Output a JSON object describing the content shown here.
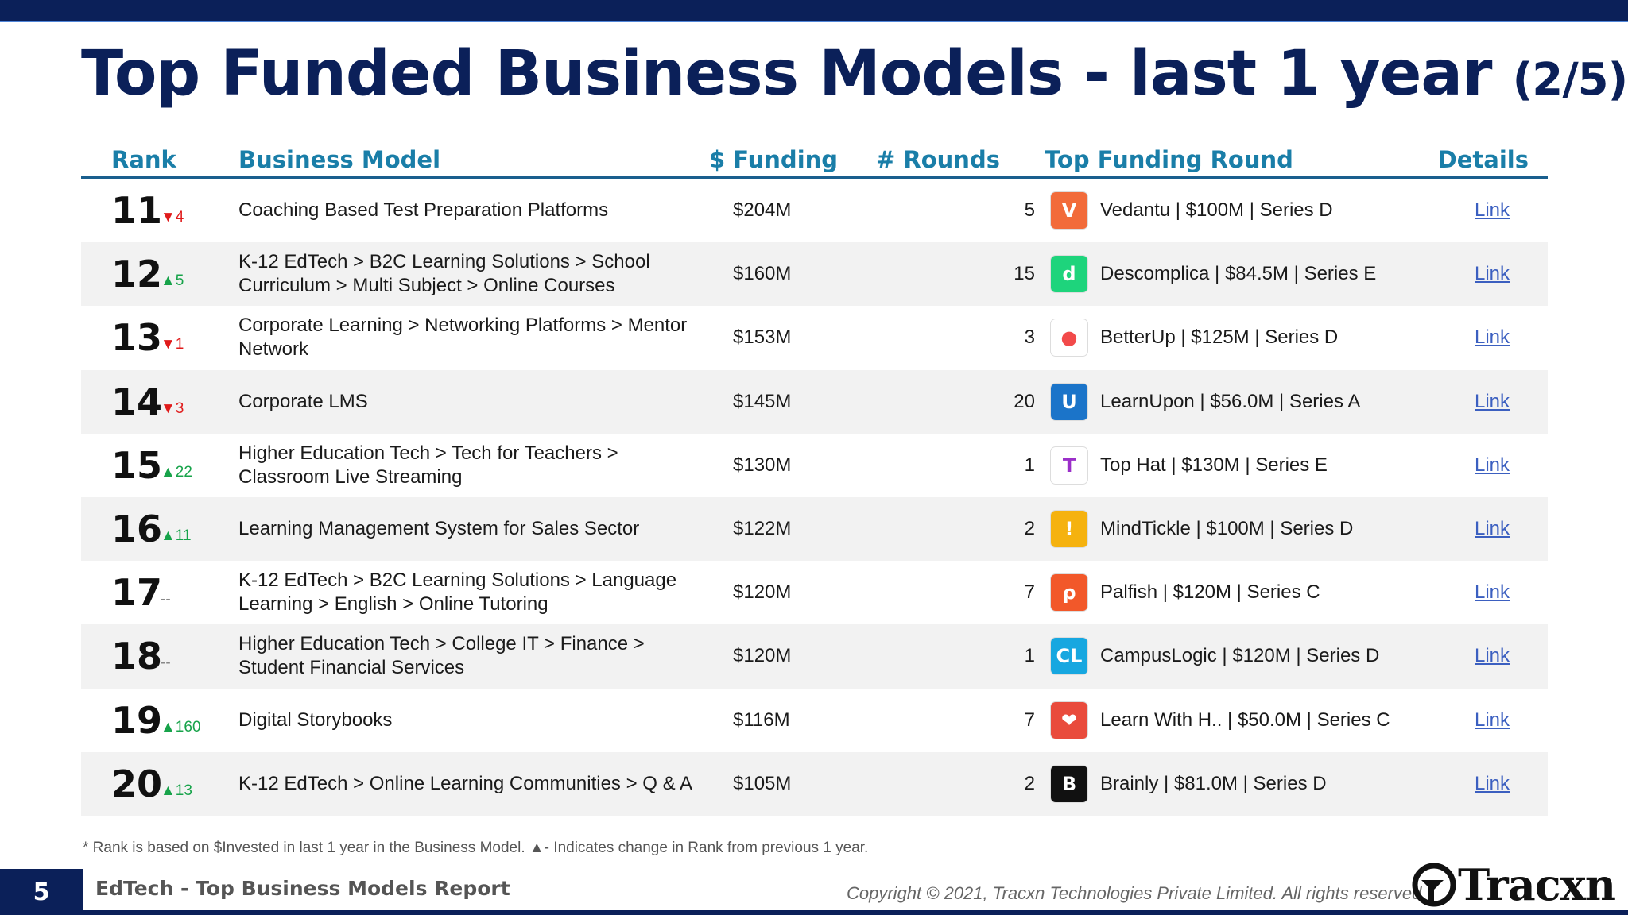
{
  "title": {
    "main": "Top Funded Business Models - last 1 year",
    "sub": "(2/5)"
  },
  "columns": {
    "rank": "Rank",
    "model": "Business Model",
    "funding": "$ Funding",
    "rounds": "# Rounds",
    "top_round": "Top Funding Round",
    "details": "Details"
  },
  "rows": [
    {
      "rank": "11",
      "change": "▼4",
      "dir": "down",
      "model": "Coaching Based Test Preparation Platforms",
      "funding": "$204M",
      "rounds": "5",
      "top_round": "Vedantu | $100M | Series D",
      "logo_text": "V",
      "logo_color": "#f26b3a",
      "logo_icon": "vedantu-logo-icon",
      "details": "Link"
    },
    {
      "rank": "12",
      "change": "▲5",
      "dir": "up",
      "model": "K-12 EdTech > B2C Learning Solutions > School Curriculum > Multi Subject > Online Courses",
      "funding": "$160M",
      "rounds": "15",
      "top_round": "Descomplica | $84.5M | Series E",
      "logo_text": "d",
      "logo_color": "#1ed47c",
      "logo_icon": "descomplica-logo-icon",
      "details": "Link"
    },
    {
      "rank": "13",
      "change": "▼1",
      "dir": "down",
      "model": "Corporate Learning > Networking Platforms > Mentor Network",
      "funding": "$153M",
      "rounds": "3",
      "top_round": "BetterUp | $125M | Series D",
      "logo_text": "●",
      "logo_color": "#ffffff",
      "logo_icon": "betterup-logo-icon",
      "details": "Link"
    },
    {
      "rank": "14",
      "change": "▼3",
      "dir": "down",
      "model": "Corporate LMS",
      "funding": "$145M",
      "rounds": "20",
      "top_round": "LearnUpon | $56.0M | Series A",
      "logo_text": "U",
      "logo_color": "#1b74c9",
      "logo_icon": "learnupon-logo-icon",
      "details": "Link"
    },
    {
      "rank": "15",
      "change": "▲22",
      "dir": "up",
      "model": "Higher Education Tech > Tech for Teachers > Classroom Live Streaming",
      "funding": "$130M",
      "rounds": "1",
      "top_round": "Top Hat | $130M | Series E",
      "logo_text": "T",
      "logo_color": "#ffffff",
      "logo_icon": "tophat-logo-icon",
      "details": "Link"
    },
    {
      "rank": "16",
      "change": "▲11",
      "dir": "up",
      "model": "Learning Management System for Sales Sector",
      "funding": "$122M",
      "rounds": "2",
      "top_round": "MindTickle | $100M | Series D",
      "logo_text": "!",
      "logo_color": "#f5b20f",
      "logo_icon": "mindtickle-logo-icon",
      "details": "Link"
    },
    {
      "rank": "17",
      "change": "--",
      "dir": "flat",
      "model": "K-12 EdTech > B2C Learning Solutions > Language Learning > English > Online Tutoring",
      "funding": "$120M",
      "rounds": "7",
      "top_round": "Palfish | $120M | Series C",
      "logo_text": "ρ",
      "logo_color": "#f2582a",
      "logo_icon": "palfish-logo-icon",
      "details": "Link"
    },
    {
      "rank": "18",
      "change": "--",
      "dir": "flat",
      "model": "Higher Education Tech > College IT > Finance > Student Financial Services",
      "funding": "$120M",
      "rounds": "1",
      "top_round": "CampusLogic | $120M | Series D",
      "logo_text": "CL",
      "logo_color": "#17a7e0",
      "logo_icon": "campuslogic-logo-icon",
      "details": "Link"
    },
    {
      "rank": "19",
      "change": "▲160",
      "dir": "up",
      "model": "Digital Storybooks",
      "funding": "$116M",
      "rounds": "7",
      "top_round": "Learn With H.. | $50.0M | Series C",
      "logo_text": "❤",
      "logo_color": "#e94b3c",
      "logo_icon": "learnwithhomer-logo-icon",
      "details": "Link"
    },
    {
      "rank": "20",
      "change": "▲13",
      "dir": "up",
      "model": "K-12 EdTech > Online Learning Communities > Q & A",
      "funding": "$105M",
      "rounds": "2",
      "top_round": "Brainly | $81.0M | Series D",
      "logo_text": "B",
      "logo_color": "#111111",
      "logo_icon": "brainly-logo-icon",
      "details": "Link"
    }
  ],
  "footnote": "*  Rank is based on $Invested in last 1 year in the Business Model.  ▲- Indicates change in Rank from previous 1 year.",
  "footer": {
    "page_number": "5",
    "report": "EdTech - Top Business Models Report",
    "copyright": "Copyright © 2021, Tracxn Technologies Private Limited. All rights reserved.",
    "brand": "Tracxn"
  }
}
